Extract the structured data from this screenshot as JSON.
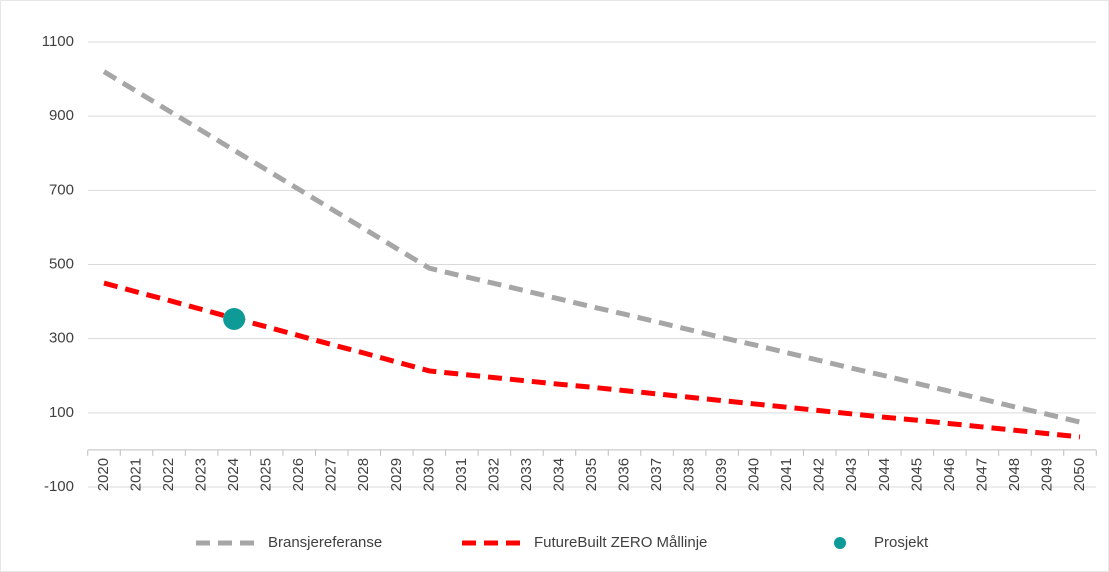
{
  "chart_data": {
    "type": "line",
    "categories": [
      "2020",
      "2021",
      "2022",
      "2023",
      "2024",
      "2025",
      "2026",
      "2027",
      "2028",
      "2029",
      "2030",
      "2031",
      "2032",
      "2033",
      "2034",
      "2035",
      "2036",
      "2037",
      "2038",
      "2039",
      "2040",
      "2041",
      "2042",
      "2043",
      "2044",
      "2045",
      "2046",
      "2047",
      "2048",
      "2049",
      "2050"
    ],
    "series": [
      {
        "name": "Bransjereferanse",
        "color": "#a6a6a6",
        "line_style": "dashed",
        "values": [
          1020,
          967,
          914,
          861,
          808,
          755,
          702,
          649,
          596,
          543,
          490,
          469,
          449,
          428,
          407,
          386,
          366,
          345,
          324,
          303,
          283,
          262,
          241,
          220,
          200,
          179,
          158,
          137,
          116,
          96,
          75
        ]
      },
      {
        "name": "FutureBuilt ZERO Mållinje",
        "color": "#ff0000",
        "line_style": "dashed",
        "values": [
          450,
          426,
          403,
          379,
          355,
          332,
          308,
          284,
          261,
          237,
          213,
          204,
          195,
          186,
          177,
          169,
          160,
          151,
          142,
          133,
          124,
          115,
          106,
          97,
          88,
          80,
          71,
          62,
          53,
          44,
          35
        ]
      },
      {
        "name": "Prosjekt",
        "color": "#0e9a96",
        "line_style": "marker",
        "values": [
          null,
          null,
          null,
          null,
          353,
          null,
          null,
          null,
          null,
          null,
          null,
          null,
          null,
          null,
          null,
          null,
          null,
          null,
          null,
          null,
          null,
          null,
          null,
          null,
          null,
          null,
          null,
          null,
          null,
          null,
          null
        ]
      }
    ],
    "ylim": [
      -100,
      1100
    ],
    "yticks": [
      -100,
      100,
      300,
      500,
      700,
      900,
      1100
    ],
    "grid": true,
    "legend": "bottom"
  }
}
